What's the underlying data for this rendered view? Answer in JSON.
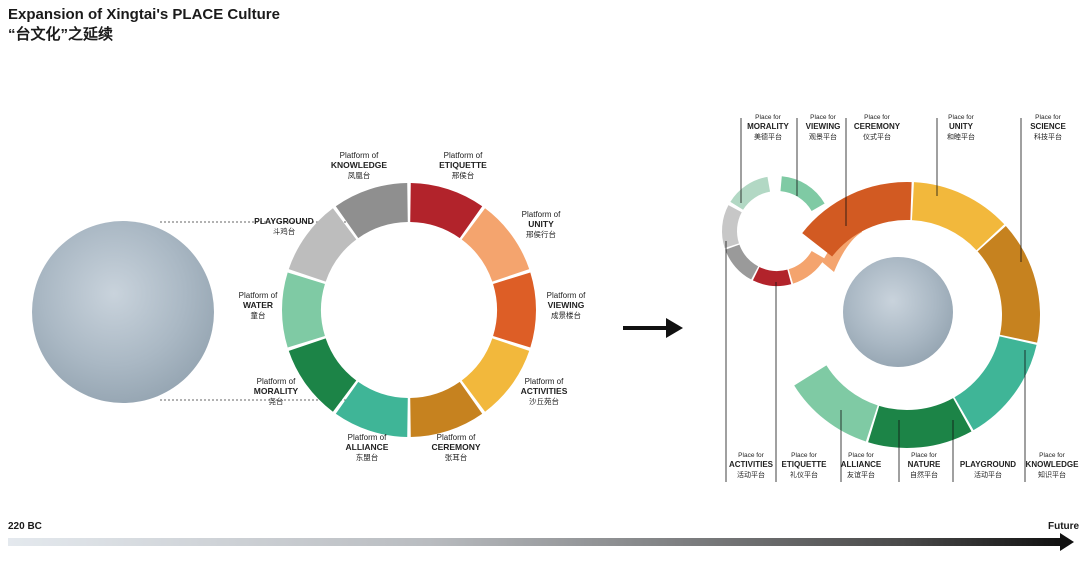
{
  "title": "Expansion of Xingtai's PLACE Culture",
  "subtitle": "“台文化”之延续",
  "left_diagram": {
    "segments": [
      {
        "color": "#b2232b",
        "line1": "Platform of",
        "line2": "KNOWLEDGE",
        "line3": "凤凰台"
      },
      {
        "color": "#f4a46e",
        "line1": "Platform of",
        "line2": "ETIQUETTE",
        "line3": "邢侯台"
      },
      {
        "color": "#dd5e26",
        "line1": "Platform of",
        "line2": "UNITY",
        "line3": "邢侯行台"
      },
      {
        "color": "#f2b83c",
        "line1": "Platform of",
        "line2": "VIEWING",
        "line3": "成景楼台"
      },
      {
        "color": "#c6821f",
        "line1": "Platform of",
        "line2": "ACTIVITIES",
        "line3": "沙丘苑台"
      },
      {
        "color": "#3fb597",
        "line1": "Platform of",
        "line2": "CEREMONY",
        "line3": "张耳台"
      },
      {
        "color": "#1c8447",
        "line1": "Platform of",
        "line2": "ALLIANCE",
        "line3": "东盟台"
      },
      {
        "color": "#7fcaa4",
        "line1": "Platform of",
        "line2": "MORALITY",
        "line3": "尧台"
      },
      {
        "color": "#bdbdbd",
        "line1": "Platform of",
        "line2": "WATER",
        "line3": "童台"
      },
      {
        "color": "#8f8f8f",
        "line1": "",
        "line2": "PLAYGROUND",
        "line3": "斗鸡台"
      }
    ]
  },
  "right_diagram": {
    "labels_top": [
      {
        "line1": "Place for",
        "line2": "MORALITY",
        "line3": "美德平台"
      },
      {
        "line1": "Place for",
        "line2": "VIEWING",
        "line3": "观景平台"
      },
      {
        "line1": "Place for",
        "line2": "CEREMONY",
        "line3": "仪式平台"
      },
      {
        "line1": "Place for",
        "line2": "UNITY",
        "line3": "和睦平台"
      },
      {
        "line1": "Place for",
        "line2": "SCIENCE",
        "line3": "科技平台"
      }
    ],
    "labels_bottom": [
      {
        "line1": "Place for",
        "line2": "ACTIVITIES",
        "line3": "活动平台"
      },
      {
        "line1": "Place for",
        "line2": "ETIQUETTE",
        "line3": "礼仪平台"
      },
      {
        "line1": "Place for",
        "line2": "ALLIANCE",
        "line3": "友谊平台"
      },
      {
        "line1": "Place for",
        "line2": "NATURE",
        "line3": "自然平台"
      },
      {
        "line1": "",
        "line2": "PLAYGROUND",
        "line3": "活动平台"
      },
      {
        "line1": "Place for",
        "line2": "KNOWLEDGE",
        "line3": "知识平台"
      }
    ],
    "small_ring_colors": [
      "#b2d8c4",
      "#7fcaa4",
      "#c7c7c7",
      "#9a9a9a",
      "#b2232b",
      "#f4a46e"
    ],
    "large_ring_colors": [
      "#d25a22",
      "#f2b83c",
      "#c6821f",
      "#3fb597",
      "#1c8447",
      "#7fcaa4"
    ]
  },
  "timeline": {
    "start": "220 BC",
    "end": "Future"
  }
}
